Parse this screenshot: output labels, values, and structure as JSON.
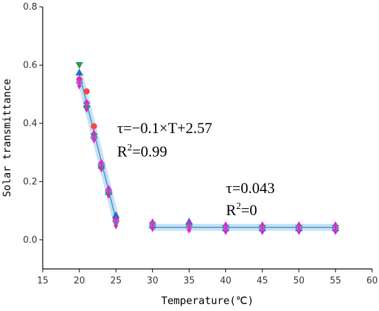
{
  "chart_data": {
    "type": "scatter",
    "xlabel": "Temperature(℃)",
    "ylabel": "Solar transmittance",
    "xlim": [
      15,
      60
    ],
    "ylim": [
      -0.1,
      0.8
    ],
    "xticks": [
      "15",
      "20",
      "25",
      "30",
      "35",
      "40",
      "45",
      "50",
      "55",
      "60"
    ],
    "yticks": [
      "0.0",
      "0.2",
      "0.4",
      "0.6",
      "0.8"
    ],
    "grid": false,
    "legend": "none",
    "annotations": [
      {
        "line1": "τ=−0.1×T+2.57",
        "r2_prefix": "R",
        "r2_sup": "2",
        "r2_value": "=0.99"
      },
      {
        "line1": "τ=0.043",
        "r2_prefix": "R",
        "r2_sup": "2",
        "r2_value": "=0"
      }
    ],
    "fit_lines": [
      {
        "x": [
          20,
          25
        ],
        "y": [
          0.57,
          0.07
        ],
        "color": "#2e86c8"
      },
      {
        "x": [
          30,
          55
        ],
        "y": [
          0.043,
          0.043
        ],
        "color": "#2e86c8"
      }
    ],
    "series": [
      {
        "marker": "circle",
        "color": "#f24b4b",
        "x": [
          20,
          21,
          22,
          23,
          24,
          25,
          30,
          35,
          40,
          45,
          50,
          55
        ],
        "y": [
          0.55,
          0.51,
          0.39,
          0.26,
          0.17,
          0.07,
          0.05,
          0.045,
          0.04,
          0.04,
          0.04,
          0.04
        ]
      },
      {
        "marker": "triangle-up",
        "color": "#1e6fc4",
        "x": [
          20,
          21,
          22,
          23,
          24,
          25,
          30,
          35,
          40,
          45,
          50,
          55
        ],
        "y": [
          0.575,
          0.465,
          0.36,
          0.255,
          0.165,
          0.085,
          0.05,
          0.063,
          0.04,
          0.04,
          0.04,
          0.04
        ]
      },
      {
        "marker": "triangle-down",
        "color": "#2e9a50",
        "x": [
          20,
          21,
          22,
          23,
          24,
          25,
          30,
          35,
          40,
          45,
          50,
          55
        ],
        "y": [
          0.6,
          0.45,
          0.355,
          0.245,
          0.155,
          0.055,
          0.05,
          0.045,
          0.04,
          0.04,
          0.04,
          0.04
        ]
      },
      {
        "marker": "diamond",
        "color": "#9b6fc8",
        "x": [
          20,
          21,
          22,
          23,
          24,
          25,
          30,
          35,
          40,
          45,
          50,
          55
        ],
        "y": [
          0.54,
          0.47,
          0.35,
          0.26,
          0.17,
          0.065,
          0.05,
          0.045,
          0.04,
          0.04,
          0.04,
          0.04
        ]
      },
      {
        "marker": "double-arrow",
        "color": "#e21fd8",
        "x": [
          20,
          21,
          22,
          23,
          24,
          25,
          30,
          35,
          40,
          45,
          50,
          55
        ],
        "y": [
          0.54,
          0.46,
          0.355,
          0.255,
          0.165,
          0.06,
          0.05,
          0.045,
          0.04,
          0.04,
          0.04,
          0.04
        ]
      }
    ]
  }
}
